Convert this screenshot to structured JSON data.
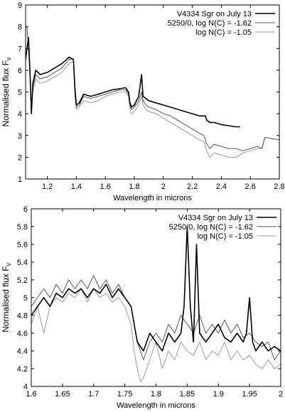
{
  "chart_data": [
    {
      "type": "line",
      "xlabel": "Wavelength in microns",
      "ylabel": "Normalised flux F",
      "ylabel_subscript": "ν",
      "xlim": [
        1.05,
        2.8
      ],
      "ylim": [
        1,
        9
      ],
      "xticks": [
        "1.2",
        "1.4",
        "1.6",
        "1.8",
        "2",
        "2.2",
        "2.4",
        "2.6",
        "2.8"
      ],
      "yticks": [
        "1",
        "2",
        "3",
        "4",
        "5",
        "6",
        "7",
        "8",
        "9"
      ],
      "legend_position": "top-right",
      "series": [
        {
          "name": "V4334 Sgr on July 13",
          "color": "#000000",
          "width": 1.6,
          "x": [
            1.05,
            1.06,
            1.07,
            1.08,
            1.09,
            1.1,
            1.12,
            1.15,
            1.2,
            1.25,
            1.3,
            1.35,
            1.38,
            1.39,
            1.4,
            1.42,
            1.45,
            1.5,
            1.55,
            1.6,
            1.65,
            1.7,
            1.74,
            1.76,
            1.77,
            1.78,
            1.8,
            1.83,
            1.85,
            1.86,
            1.88,
            1.9,
            1.95,
            2.0,
            2.05,
            2.1,
            2.15,
            2.2,
            2.25,
            2.29,
            2.3,
            2.32,
            2.35,
            2.4,
            2.45,
            2.5,
            2.53
          ],
          "y": [
            6.5,
            7.0,
            7.5,
            6.0,
            4.0,
            5.4,
            6.0,
            5.8,
            5.9,
            6.1,
            6.3,
            6.6,
            6.5,
            5.2,
            4.4,
            4.5,
            4.9,
            4.8,
            4.9,
            5.0,
            5.1,
            5.15,
            5.2,
            5.0,
            4.5,
            4.3,
            4.4,
            4.8,
            5.8,
            4.8,
            4.7,
            4.6,
            4.5,
            4.4,
            4.3,
            4.2,
            4.1,
            4.0,
            3.9,
            3.9,
            3.7,
            3.6,
            3.6,
            3.5,
            3.45,
            3.4,
            3.4
          ]
        },
        {
          "name": "5250/0, log N(C) = -1.62",
          "color": "#555555",
          "width": 1.0,
          "x": [
            1.05,
            1.06,
            1.07,
            1.08,
            1.09,
            1.1,
            1.12,
            1.15,
            1.2,
            1.25,
            1.3,
            1.35,
            1.38,
            1.39,
            1.4,
            1.42,
            1.45,
            1.5,
            1.55,
            1.6,
            1.65,
            1.7,
            1.74,
            1.76,
            1.77,
            1.78,
            1.8,
            1.83,
            1.85,
            1.86,
            1.88,
            1.9,
            1.95,
            2.0,
            2.05,
            2.1,
            2.15,
            2.2,
            2.25,
            2.28,
            2.3,
            2.32,
            2.35,
            2.4,
            2.45,
            2.5,
            2.55,
            2.6,
            2.65,
            2.68,
            2.7,
            2.72,
            2.75,
            2.8
          ],
          "y": [
            8.0,
            8.0,
            7.0,
            6.0,
            4.2,
            5.2,
            5.8,
            5.6,
            5.7,
            5.9,
            6.1,
            6.5,
            6.5,
            5.0,
            4.3,
            4.4,
            4.8,
            4.7,
            4.8,
            4.9,
            5.0,
            5.1,
            5.1,
            4.9,
            4.4,
            4.2,
            4.3,
            4.6,
            5.0,
            4.6,
            4.4,
            4.3,
            4.2,
            4.0,
            3.9,
            3.7,
            3.5,
            3.3,
            3.1,
            3.0,
            2.6,
            2.4,
            2.6,
            2.5,
            2.4,
            2.4,
            2.3,
            2.4,
            2.5,
            2.4,
            2.9,
            2.9,
            2.85,
            2.8
          ]
        },
        {
          "name": "log N(C) = -1.05",
          "color": "#999999",
          "width": 1.0,
          "x": [
            1.05,
            1.06,
            1.07,
            1.08,
            1.09,
            1.1,
            1.12,
            1.15,
            1.2,
            1.25,
            1.3,
            1.35,
            1.38,
            1.39,
            1.4,
            1.42,
            1.45,
            1.5,
            1.55,
            1.6,
            1.65,
            1.7,
            1.74,
            1.76,
            1.77,
            1.78,
            1.8,
            1.83,
            1.85,
            1.86,
            1.88,
            1.9,
            1.95,
            2.0,
            2.05,
            2.1,
            2.15,
            2.2,
            2.25,
            2.28,
            2.3,
            2.32,
            2.35,
            2.4,
            2.45,
            2.5,
            2.55,
            2.6,
            2.65,
            2.68,
            2.7,
            2.72,
            2.75,
            2.8
          ],
          "y": [
            8.0,
            8.0,
            7.0,
            5.8,
            4.0,
            5.0,
            5.6,
            5.4,
            5.5,
            5.7,
            5.9,
            6.3,
            6.4,
            4.8,
            4.2,
            4.3,
            4.6,
            4.5,
            4.6,
            4.8,
            4.9,
            5.0,
            5.0,
            4.8,
            4.2,
            4.0,
            4.1,
            4.4,
            4.8,
            4.4,
            4.2,
            4.1,
            4.0,
            3.8,
            3.6,
            3.4,
            3.2,
            3.0,
            2.8,
            2.7,
            2.3,
            2.0,
            2.2,
            2.1,
            2.0,
            2.0,
            2.2,
            2.3,
            2.4,
            2.4,
            2.9,
            2.9,
            2.85,
            2.8
          ]
        }
      ]
    },
    {
      "type": "line",
      "xlabel": "Wavelength in microns",
      "ylabel": "Normalised flux F",
      "ylabel_subscript": "ν",
      "xlim": [
        1.6,
        2.0
      ],
      "ylim": [
        4,
        6
      ],
      "xticks": [
        "1.6",
        "1.65",
        "1.7",
        "1.75",
        "1.8",
        "1.85",
        "1.9",
        "1.95",
        "2"
      ],
      "yticks": [
        "4",
        "4.2",
        "4.4",
        "4.6",
        "4.8",
        "5",
        "5.2",
        "5.4",
        "5.6",
        "5.8",
        "6"
      ],
      "legend_position": "top-right",
      "series": [
        {
          "name": "V4334 Sgr on July 13",
          "color": "#000000",
          "width": 1.6,
          "x": [
            1.6,
            1.61,
            1.62,
            1.63,
            1.64,
            1.65,
            1.66,
            1.67,
            1.68,
            1.69,
            1.7,
            1.71,
            1.72,
            1.73,
            1.74,
            1.75,
            1.76,
            1.765,
            1.77,
            1.78,
            1.79,
            1.8,
            1.81,
            1.82,
            1.83,
            1.84,
            1.845,
            1.85,
            1.855,
            1.86,
            1.865,
            1.87,
            1.88,
            1.89,
            1.9,
            1.91,
            1.92,
            1.93,
            1.94,
            1.945,
            1.95,
            1.955,
            1.96,
            1.97,
            1.98,
            1.99,
            2.0
          ],
          "y": [
            4.8,
            4.9,
            5.0,
            4.9,
            5.05,
            5.0,
            5.1,
            5.05,
            5.1,
            5.0,
            5.1,
            5.05,
            5.15,
            5.0,
            5.1,
            5.0,
            4.9,
            4.7,
            4.5,
            4.4,
            4.6,
            4.5,
            4.4,
            4.6,
            4.5,
            4.6,
            4.9,
            5.8,
            4.9,
            4.5,
            5.6,
            4.6,
            4.5,
            4.6,
            4.7,
            4.55,
            4.5,
            4.6,
            4.5,
            4.6,
            5.0,
            4.5,
            4.4,
            4.5,
            4.4,
            4.45,
            4.4
          ]
        },
        {
          "name": "5250/0, log N(C) = -1.62",
          "color": "#555555",
          "width": 1.0,
          "x": [
            1.6,
            1.61,
            1.62,
            1.63,
            1.64,
            1.65,
            1.66,
            1.67,
            1.68,
            1.69,
            1.7,
            1.71,
            1.72,
            1.73,
            1.74,
            1.75,
            1.76,
            1.765,
            1.77,
            1.78,
            1.79,
            1.8,
            1.81,
            1.82,
            1.83,
            1.84,
            1.85,
            1.86,
            1.87,
            1.88,
            1.89,
            1.9,
            1.91,
            1.92,
            1.93,
            1.94,
            1.95,
            1.96,
            1.97,
            1.98,
            1.99,
            2.0
          ],
          "y": [
            4.9,
            5.0,
            5.1,
            5.0,
            5.15,
            5.05,
            5.2,
            5.1,
            5.2,
            5.1,
            5.25,
            5.1,
            5.2,
            5.05,
            5.15,
            5.0,
            4.9,
            4.7,
            4.5,
            4.3,
            4.5,
            4.6,
            4.5,
            4.7,
            4.6,
            4.8,
            4.7,
            4.6,
            4.8,
            4.6,
            4.7,
            4.6,
            4.75,
            4.6,
            4.7,
            4.55,
            4.6,
            4.5,
            4.45,
            4.5,
            4.3,
            4.4
          ]
        },
        {
          "name": "log N(C) = -1.05",
          "color": "#999999",
          "width": 1.0,
          "x": [
            1.6,
            1.61,
            1.62,
            1.63,
            1.64,
            1.65,
            1.66,
            1.67,
            1.68,
            1.69,
            1.7,
            1.71,
            1.72,
            1.73,
            1.74,
            1.75,
            1.76,
            1.765,
            1.77,
            1.775,
            1.78,
            1.79,
            1.8,
            1.81,
            1.82,
            1.83,
            1.84,
            1.85,
            1.86,
            1.87,
            1.88,
            1.89,
            1.9,
            1.91,
            1.92,
            1.93,
            1.94,
            1.95,
            1.96,
            1.97,
            1.98,
            1.99,
            2.0
          ],
          "y": [
            4.7,
            4.9,
            4.6,
            4.9,
            5.0,
            4.95,
            5.05,
            5.0,
            5.1,
            4.95,
            5.1,
            5.0,
            5.05,
            4.95,
            5.0,
            4.9,
            4.7,
            4.4,
            4.2,
            4.05,
            4.1,
            4.3,
            4.5,
            4.2,
            4.4,
            4.3,
            4.5,
            4.4,
            4.35,
            4.5,
            4.3,
            4.4,
            4.35,
            4.5,
            4.3,
            4.4,
            4.3,
            4.35,
            4.25,
            4.2,
            4.3,
            4.2,
            4.25
          ]
        }
      ]
    }
  ]
}
